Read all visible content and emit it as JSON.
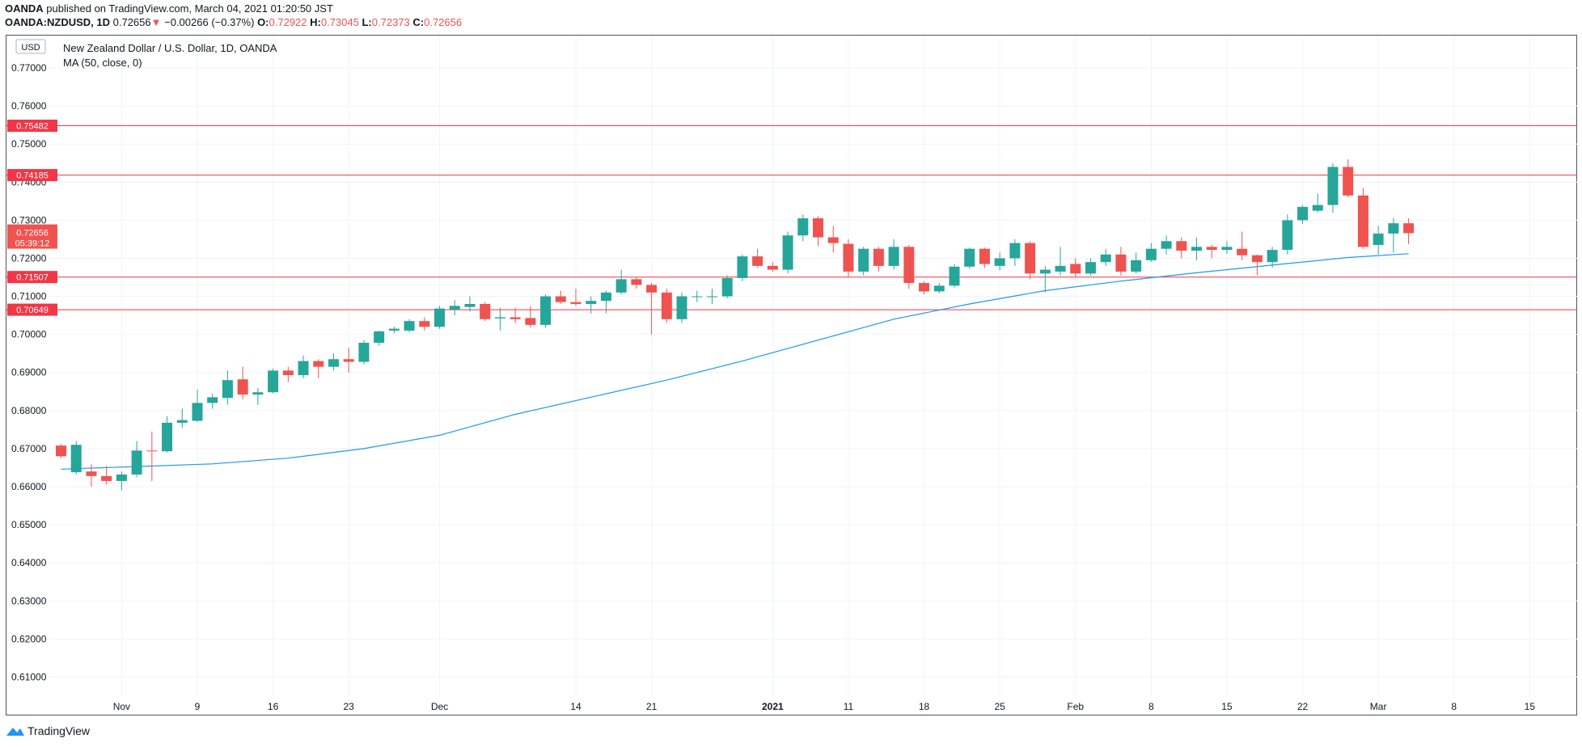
{
  "header": {
    "publisher": "OANDA",
    "published_text": "published on TradingView.com, March 04, 2021 01:20:50 JST",
    "symbol": "OANDA:NZDUSD, 1D",
    "last": "0.72656",
    "change": "−0.00266 (−0.37%)",
    "o_label": "O:",
    "o": "0.72922",
    "h_label": "H:",
    "h": "0.73045",
    "l_label": "L:",
    "l": "0.72373",
    "c_label": "C:",
    "c": "0.72656"
  },
  "legend": {
    "currency_badge": "USD",
    "title": "New Zealand Dollar / U.S. Dollar, 1D, OANDA",
    "indicator": "MA (50, close, 0)"
  },
  "footer": {
    "brand": "TradingView"
  },
  "colors": {
    "up": "#26a69a",
    "down": "#ef5350",
    "ma": "#2196f3",
    "level": "#f23645",
    "grid": "#f0f3fa",
    "text": "#131722"
  },
  "chart_data": {
    "type": "candlestick",
    "title": "New Zealand Dollar / U.S. Dollar, 1D, OANDA",
    "ylim": [
      0.605,
      0.7785
    ],
    "y_ticks": [
      "0.77000",
      "0.76000",
      "0.75000",
      "0.74000",
      "0.73000",
      "0.72000",
      "0.71000",
      "0.70000",
      "0.69000",
      "0.68000",
      "0.67000",
      "0.66000",
      "0.65000",
      "0.64000",
      "0.63000",
      "0.62000",
      "0.61000"
    ],
    "x_ticks": [
      {
        "label": "Nov",
        "bar": 4,
        "bold": false
      },
      {
        "label": "9",
        "bar": 9,
        "bold": false
      },
      {
        "label": "16",
        "bar": 14,
        "bold": false
      },
      {
        "label": "23",
        "bar": 19,
        "bold": false
      },
      {
        "label": "Dec",
        "bar": 25,
        "bold": false
      },
      {
        "label": "14",
        "bar": 34,
        "bold": false
      },
      {
        "label": "21",
        "bar": 39,
        "bold": false
      },
      {
        "label": "2021",
        "bar": 47,
        "bold": true
      },
      {
        "label": "11",
        "bar": 52,
        "bold": false
      },
      {
        "label": "18",
        "bar": 57,
        "bold": false
      },
      {
        "label": "25",
        "bar": 62,
        "bold": false
      },
      {
        "label": "Feb",
        "bar": 67,
        "bold": false
      },
      {
        "label": "8",
        "bar": 72,
        "bold": false
      },
      {
        "label": "15",
        "bar": 77,
        "bold": false
      },
      {
        "label": "22",
        "bar": 82,
        "bold": false
      },
      {
        "label": "Mar",
        "bar": 87,
        "bold": false
      },
      {
        "label": "8",
        "bar": 92,
        "bold": false
      },
      {
        "label": "15",
        "bar": 97,
        "bold": false
      }
    ],
    "horizontal_levels": [
      {
        "value": 0.75482,
        "label": "0.75482"
      },
      {
        "value": 0.74185,
        "label": "0.74185"
      },
      {
        "value": 0.71507,
        "label": "0.71507"
      },
      {
        "value": 0.70649,
        "label": "0.70649"
      }
    ],
    "last_price": {
      "value": 0.72656,
      "label": "0.72656",
      "countdown": "05:39:12"
    },
    "candles": [
      [
        0.6708,
        0.6712,
        0.6675,
        0.668
      ],
      [
        0.6638,
        0.672,
        0.6632,
        0.671
      ],
      [
        0.664,
        0.666,
        0.66,
        0.6628
      ],
      [
        0.6628,
        0.6655,
        0.6605,
        0.6615
      ],
      [
        0.6615,
        0.664,
        0.659,
        0.6632
      ],
      [
        0.6632,
        0.672,
        0.6625,
        0.6695
      ],
      [
        0.6695,
        0.6745,
        0.6615,
        0.6693
      ],
      [
        0.6693,
        0.6785,
        0.669,
        0.6768
      ],
      [
        0.6768,
        0.6805,
        0.6755,
        0.6775
      ],
      [
        0.6773,
        0.6855,
        0.677,
        0.682
      ],
      [
        0.682,
        0.6845,
        0.6805,
        0.6835
      ],
      [
        0.6833,
        0.6905,
        0.6815,
        0.688
      ],
      [
        0.6882,
        0.6915,
        0.683,
        0.6842
      ],
      [
        0.6842,
        0.686,
        0.6815,
        0.6848
      ],
      [
        0.6848,
        0.691,
        0.6845,
        0.6905
      ],
      [
        0.6905,
        0.6915,
        0.6875,
        0.6893
      ],
      [
        0.6893,
        0.6945,
        0.6885,
        0.693
      ],
      [
        0.693,
        0.6935,
        0.6885,
        0.6915
      ],
      [
        0.6915,
        0.695,
        0.6905,
        0.6935
      ],
      [
        0.6935,
        0.6965,
        0.69,
        0.6928
      ],
      [
        0.6928,
        0.6985,
        0.6922,
        0.6978
      ],
      [
        0.6978,
        0.701,
        0.697,
        0.7008
      ],
      [
        0.701,
        0.702,
        0.7003,
        0.7015
      ],
      [
        0.701,
        0.704,
        0.7005,
        0.7035
      ],
      [
        0.7035,
        0.7045,
        0.701,
        0.702
      ],
      [
        0.702,
        0.7075,
        0.7015,
        0.7068
      ],
      [
        0.7065,
        0.709,
        0.705,
        0.7075
      ],
      [
        0.7072,
        0.71,
        0.706,
        0.708
      ],
      [
        0.708,
        0.7085,
        0.7035,
        0.704
      ],
      [
        0.7042,
        0.707,
        0.701,
        0.7045
      ],
      [
        0.7045,
        0.707,
        0.703,
        0.704
      ],
      [
        0.7043,
        0.7075,
        0.7018,
        0.7025
      ],
      [
        0.7025,
        0.7105,
        0.7018,
        0.71
      ],
      [
        0.71,
        0.7115,
        0.708,
        0.7085
      ],
      [
        0.7085,
        0.712,
        0.7075,
        0.708
      ],
      [
        0.708,
        0.71,
        0.7055,
        0.7088
      ],
      [
        0.7088,
        0.7115,
        0.7055,
        0.711
      ],
      [
        0.711,
        0.717,
        0.7105,
        0.7145
      ],
      [
        0.7145,
        0.715,
        0.712,
        0.713
      ],
      [
        0.713,
        0.7135,
        0.7,
        0.711
      ],
      [
        0.711,
        0.712,
        0.703,
        0.704
      ],
      [
        0.704,
        0.711,
        0.703,
        0.71
      ],
      [
        0.7098,
        0.7115,
        0.7085,
        0.71
      ],
      [
        0.7098,
        0.712,
        0.708,
        0.71
      ],
      [
        0.71,
        0.7155,
        0.7095,
        0.7148
      ],
      [
        0.7148,
        0.721,
        0.714,
        0.7205
      ],
      [
        0.7205,
        0.7225,
        0.7175,
        0.718
      ],
      [
        0.718,
        0.719,
        0.7165,
        0.717
      ],
      [
        0.717,
        0.727,
        0.716,
        0.726
      ],
      [
        0.726,
        0.7315,
        0.7245,
        0.7305
      ],
      [
        0.7305,
        0.731,
        0.7232,
        0.7255
      ],
      [
        0.7255,
        0.7285,
        0.7215,
        0.724
      ],
      [
        0.7238,
        0.725,
        0.715,
        0.7165
      ],
      [
        0.7165,
        0.723,
        0.7155,
        0.7225
      ],
      [
        0.7225,
        0.723,
        0.7165,
        0.718
      ],
      [
        0.718,
        0.725,
        0.717,
        0.723
      ],
      [
        0.723,
        0.7235,
        0.712,
        0.7135
      ],
      [
        0.7135,
        0.714,
        0.7105,
        0.7113
      ],
      [
        0.7113,
        0.7135,
        0.7108,
        0.7128
      ],
      [
        0.7128,
        0.7185,
        0.7123,
        0.7178
      ],
      [
        0.7178,
        0.7228,
        0.7172,
        0.7225
      ],
      [
        0.7225,
        0.7228,
        0.7175,
        0.7185
      ],
      [
        0.718,
        0.7215,
        0.7168,
        0.72
      ],
      [
        0.72,
        0.725,
        0.718,
        0.724
      ],
      [
        0.724,
        0.7245,
        0.7145,
        0.716
      ],
      [
        0.716,
        0.718,
        0.711,
        0.717
      ],
      [
        0.7165,
        0.723,
        0.7155,
        0.718
      ],
      [
        0.7185,
        0.72,
        0.715,
        0.716
      ],
      [
        0.716,
        0.72,
        0.7155,
        0.719
      ],
      [
        0.719,
        0.7225,
        0.718,
        0.721
      ],
      [
        0.721,
        0.723,
        0.7155,
        0.7165
      ],
      [
        0.7165,
        0.7215,
        0.716,
        0.7195
      ],
      [
        0.7195,
        0.724,
        0.719,
        0.7225
      ],
      [
        0.7225,
        0.726,
        0.721,
        0.7245
      ],
      [
        0.7245,
        0.7255,
        0.72,
        0.722
      ],
      [
        0.722,
        0.7255,
        0.7195,
        0.723
      ],
      [
        0.723,
        0.7235,
        0.72,
        0.7222
      ],
      [
        0.7222,
        0.7245,
        0.7212,
        0.723
      ],
      [
        0.7225,
        0.727,
        0.7195,
        0.7208
      ],
      [
        0.7208,
        0.721,
        0.7155,
        0.719
      ],
      [
        0.719,
        0.723,
        0.7175,
        0.7222
      ],
      [
        0.7222,
        0.7315,
        0.721,
        0.73
      ],
      [
        0.73,
        0.734,
        0.729,
        0.7335
      ],
      [
        0.7325,
        0.737,
        0.732,
        0.734
      ],
      [
        0.734,
        0.745,
        0.732,
        0.744
      ],
      [
        0.744,
        0.746,
        0.736,
        0.7365
      ],
      [
        0.7365,
        0.7385,
        0.7225,
        0.723
      ],
      [
        0.7235,
        0.7285,
        0.721,
        0.7265
      ],
      [
        0.7265,
        0.7305,
        0.7215,
        0.7292
      ],
      [
        0.7292,
        0.7305,
        0.7237,
        0.7266
      ]
    ],
    "ma": [
      [
        0,
        0.6646
      ],
      [
        5,
        0.6653
      ],
      [
        10,
        0.666
      ],
      [
        15,
        0.6675
      ],
      [
        20,
        0.67
      ],
      [
        25,
        0.6735
      ],
      [
        30,
        0.679
      ],
      [
        35,
        0.6835
      ],
      [
        40,
        0.688
      ],
      [
        45,
        0.693
      ],
      [
        50,
        0.6985
      ],
      [
        55,
        0.704
      ],
      [
        60,
        0.708
      ],
      [
        65,
        0.7115
      ],
      [
        70,
        0.714
      ],
      [
        75,
        0.7162
      ],
      [
        80,
        0.7182
      ],
      [
        85,
        0.7202
      ],
      [
        89,
        0.7212
      ]
    ]
  }
}
